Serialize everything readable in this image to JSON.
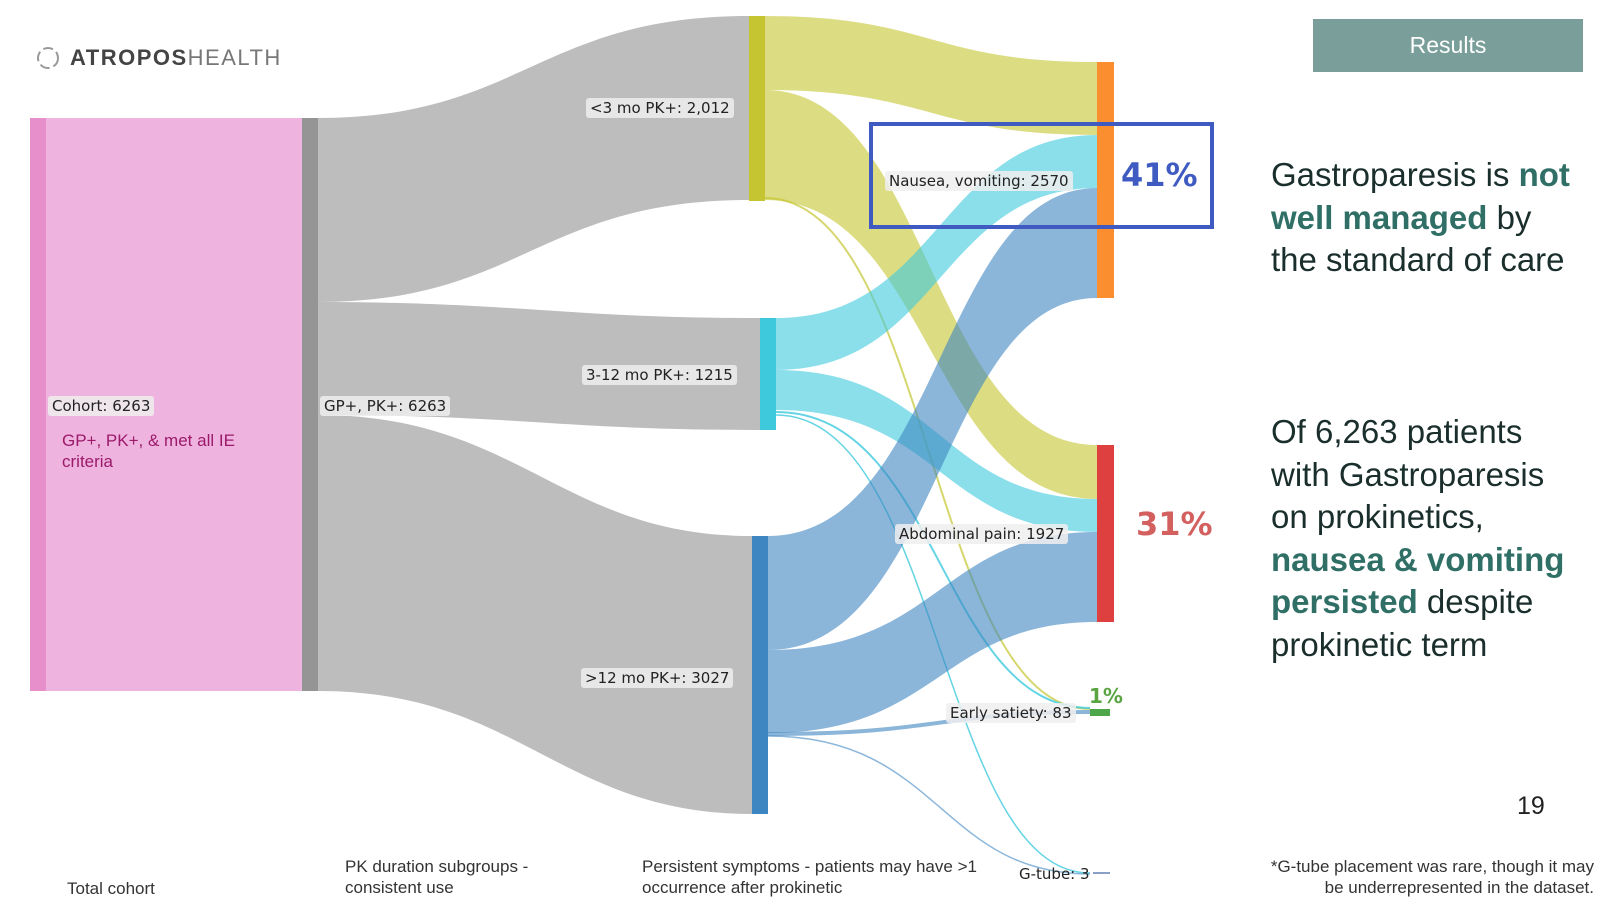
{
  "header": {
    "logo_bold": "ATROPOS",
    "logo_light": "HEALTH",
    "badge": "Results"
  },
  "nodes": {
    "cohort": "Cohort: 6263",
    "cohort_desc": "GP+, PK+, & met all IE criteria",
    "gp_pk": "GP+, PK+: 6263",
    "lt3": "<3 mo PK+: 2,012",
    "m3_12": "3-12 mo PK+: 1215",
    "gt12": ">12 mo PK+: 3027",
    "nausea": "Nausea, vomiting: 2570",
    "abdominal": "Abdominal pain: 1927",
    "early": "Early satiety: 83",
    "gtube": "G-tube: 3"
  },
  "percentages": {
    "nausea": "41%",
    "abdominal": "31%",
    "early": "1%"
  },
  "colors": {
    "cohort": "#efb3df",
    "cohort_bar": "#e68fcb",
    "gp_bar": "#959595",
    "lt3_bar": "#c4c530",
    "m3_bar": "#3ec9dd",
    "gt12_bar": "#3d86c2",
    "nausea_bar": "#fb8f2f",
    "abdominal_bar": "#de4040",
    "early_bar": "#4ea64a",
    "pct_nausea": "#3f5bc2",
    "pct_abdominal": "#d35f5f",
    "pct_early": "#5aa542"
  },
  "panel": {
    "p1_a": "Gastroparesis is",
    "p1_em": "not well managed",
    "p1_b": "by the standard of care",
    "p2_a": "Of 6,263 patients with Gastroparesis on prokinetics,",
    "p2_em": "nausea & vomiting persisted",
    "p2_b": "despite prokinetic term"
  },
  "page_number": "19",
  "footer": {
    "col1": "Total cohort",
    "col2": "PK duration subgroups - consistent use",
    "col3": "Persistent symptoms - patients may have >1 occurrence after prokinetic",
    "note": "*G-tube placement was rare, though it may be underrepresented in the dataset."
  }
}
